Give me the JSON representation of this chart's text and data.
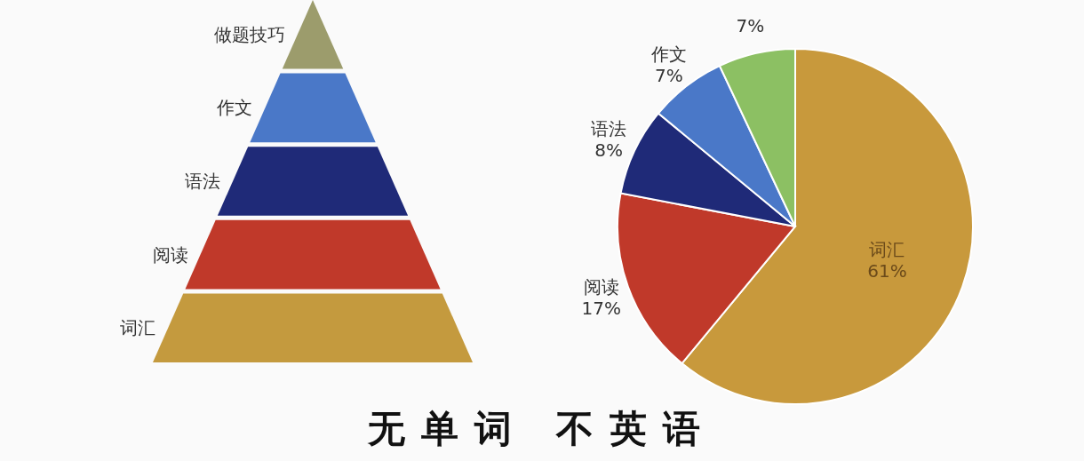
{
  "chart_data": [
    {
      "type": "other",
      "title": "无单词 不英语",
      "categories": [
        "做题技巧",
        "作文",
        "语法",
        "阅读",
        "词汇"
      ],
      "colors": [
        "#9c9c6c",
        "#4a78c8",
        "#1f2a78",
        "#c0392a",
        "#c49a3e"
      ]
    },
    {
      "type": "pie",
      "categories": [
        "词汇",
        "阅读",
        "语法",
        "作文",
        null
      ],
      "values": [
        61,
        17,
        8,
        7,
        7
      ],
      "value_labels": [
        "61%",
        "17%",
        "8%",
        "7%",
        "7%"
      ],
      "colors": [
        "#c8993c",
        "#c0392a",
        "#1f2a78",
        "#4a78c8",
        "#8cc063"
      ]
    }
  ]
}
